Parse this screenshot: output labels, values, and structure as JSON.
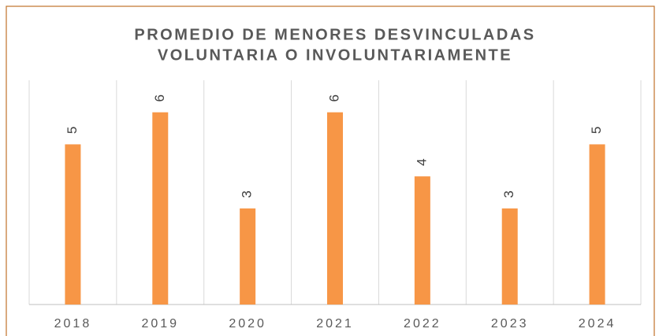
{
  "chart_data": {
    "type": "bar",
    "title": [
      "PROMEDIO DE MENORES DESVINCULADAS",
      "VOLUNTARIA O INVOLUNTARIAMENTE"
    ],
    "categories": [
      "2018",
      "2019",
      "2020",
      "2021",
      "2022",
      "2023",
      "2024"
    ],
    "values": [
      5,
      6,
      3,
      6,
      4,
      3,
      5
    ],
    "color": "#f79646",
    "ylim": [
      0,
      7
    ],
    "grid": true
  }
}
